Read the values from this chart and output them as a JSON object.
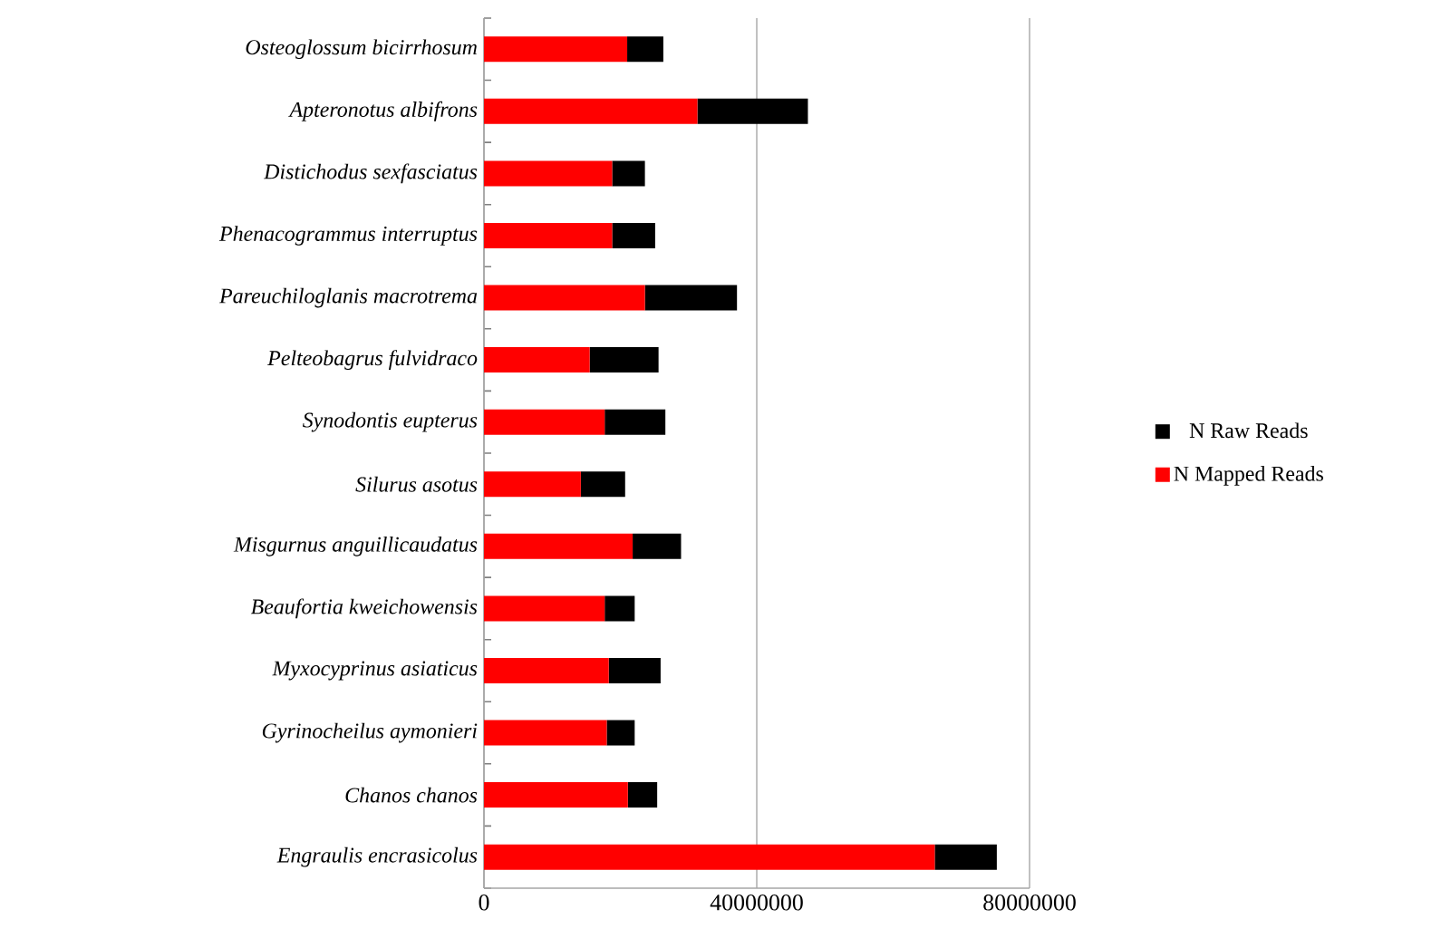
{
  "chart_data": {
    "type": "bar",
    "orientation": "horizontal",
    "stacked": true,
    "categories": [
      "Osteoglossum bicirrhosum",
      "Apteronotus albifrons",
      "Distichodus sexfasciatus",
      "Phenacogrammus interruptus",
      "Pareuchiloglanis macrotrema",
      "Pelteobagrus fulvidraco",
      "Synodontis eupterus",
      "Silurus asotus",
      "Misgurnus anguillicaudatus",
      "Beaufortia kweichowensis",
      "Myxocyprinus asiaticus",
      "Gyrinocheilus aymonieri",
      "Chanos chanos",
      "Engraulis encrasicolus"
    ],
    "series": [
      {
        "name": "N Mapped Reads",
        "color": "#ff0000",
        "values": [
          21000000,
          31300000,
          18800000,
          18800000,
          23600000,
          15500000,
          17700000,
          14200000,
          21800000,
          17700000,
          18300000,
          18000000,
          21100000,
          66100000
        ]
      },
      {
        "name": "N Raw Reads",
        "color": "#000000",
        "values": [
          5300000,
          16200000,
          4800000,
          6300000,
          13500000,
          10100000,
          8900000,
          6500000,
          7100000,
          4400000,
          7600000,
          4100000,
          4300000,
          9100000
        ]
      }
    ],
    "xlim": [
      0,
      80000000
    ],
    "xticks": [
      0,
      40000000,
      80000000
    ],
    "grid": "x",
    "legend": "right"
  }
}
